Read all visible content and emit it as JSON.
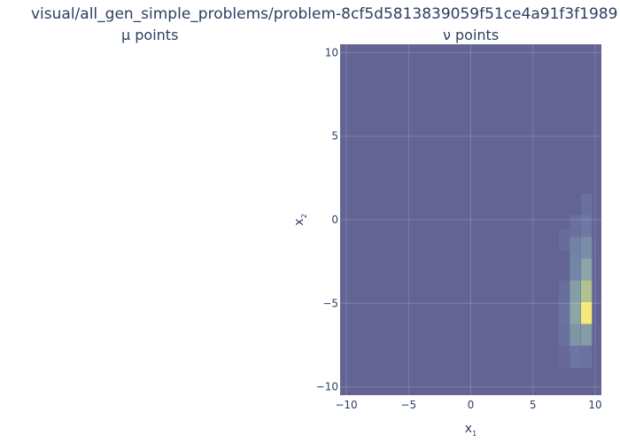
{
  "title": "visual/all_gen_simple_problems/problem-8cf5d5813839059f51ce4a91f3f1989",
  "subplots": [
    {
      "title": "μ points"
    },
    {
      "title": "ν points"
    }
  ],
  "chart_data": {
    "type": "heatmap",
    "subplot": "ν points",
    "xlabel_main": "x",
    "xlabel_sub": "1",
    "ylabel_main": "x",
    "ylabel_sub": "2",
    "xlim": [
      -10.5,
      10.5
    ],
    "ylim": [
      -10.5,
      10.5
    ],
    "x_ticks": [
      -10,
      -5,
      0,
      5,
      10
    ],
    "y_ticks": [
      -10,
      -5,
      0,
      5,
      10
    ],
    "grid": true,
    "background_color": "#636394",
    "colorscale": [
      "#636394",
      "#6f7ea8",
      "#8aa6a6",
      "#b9c98a",
      "#f5e97a"
    ],
    "cell_width": 0.875,
    "cell_height": 1.33,
    "cells": [
      {
        "x": 7.5,
        "y": -1.2,
        "v": 0.08
      },
      {
        "x": 8.4,
        "y": -0.4,
        "v": 0.12
      },
      {
        "x": 8.4,
        "y": -1.7,
        "v": 0.28
      },
      {
        "x": 8.4,
        "y": -3.0,
        "v": 0.3
      },
      {
        "x": 8.4,
        "y": -4.3,
        "v": 0.45
      },
      {
        "x": 8.4,
        "y": -5.6,
        "v": 0.5
      },
      {
        "x": 8.4,
        "y": -6.9,
        "v": 0.4
      },
      {
        "x": 8.4,
        "y": -8.2,
        "v": 0.18
      },
      {
        "x": 9.3,
        "y": 0.9,
        "v": 0.12
      },
      {
        "x": 9.3,
        "y": -0.4,
        "v": 0.2
      },
      {
        "x": 9.3,
        "y": -1.7,
        "v": 0.35
      },
      {
        "x": 9.3,
        "y": -3.0,
        "v": 0.5
      },
      {
        "x": 9.3,
        "y": -4.3,
        "v": 0.7
      },
      {
        "x": 9.3,
        "y": -5.6,
        "v": 1.0
      },
      {
        "x": 9.3,
        "y": -6.9,
        "v": 0.45
      },
      {
        "x": 9.3,
        "y": -8.2,
        "v": 0.15
      },
      {
        "x": 7.5,
        "y": -4.3,
        "v": 0.1
      },
      {
        "x": 7.5,
        "y": -5.6,
        "v": 0.15
      },
      {
        "x": 7.5,
        "y": -6.9,
        "v": 0.12
      },
      {
        "x": 7.5,
        "y": -8.2,
        "v": 0.06
      }
    ]
  }
}
